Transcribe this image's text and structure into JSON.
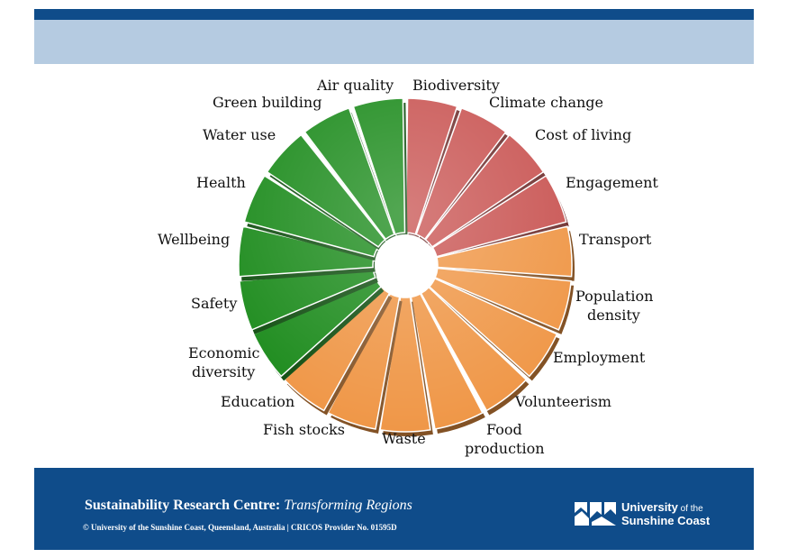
{
  "segments": [
    {
      "label": "Biodiversity",
      "color": "#c85250"
    },
    {
      "label": "Climate change",
      "color": "#c85250"
    },
    {
      "label": "Cost of living",
      "color": "#c85250"
    },
    {
      "label": "Engagement",
      "color": "#c85250"
    },
    {
      "label": "Transport",
      "color": "#ef9544"
    },
    {
      "label": "Population density",
      "color": "#ef9544"
    },
    {
      "label": "Employment",
      "color": "#ef9544"
    },
    {
      "label": "Volunteerism",
      "color": "#ef9544"
    },
    {
      "label": "Food production",
      "color": "#ef9544"
    },
    {
      "label": "Waste",
      "color": "#ef9544"
    },
    {
      "label": "Fish stocks",
      "color": "#ef9544"
    },
    {
      "label": "Education",
      "color": "#ef9544"
    },
    {
      "label": "Economic diversity",
      "color": "#1a8a1a"
    },
    {
      "label": "Safety",
      "color": "#1a8a1a"
    },
    {
      "label": "Wellbeing",
      "color": "#1a8a1a"
    },
    {
      "label": "Health",
      "color": "#1a8a1a"
    },
    {
      "label": "Water use",
      "color": "#1a8a1a"
    },
    {
      "label": "Green building",
      "color": "#1a8a1a"
    },
    {
      "label": "Air quality",
      "color": "#1a8a1a"
    }
  ],
  "labels": {
    "biodiversity": "Biodiversity",
    "climate_change": "Climate change",
    "cost_of_living": "Cost of living",
    "engagement": "Engagement",
    "transport": "Transport",
    "population_density_1": "Population",
    "population_density_2": "density",
    "employment": "Employment",
    "volunteerism": "Volunteerism",
    "food_production_1": "Food",
    "food_production_2": "production",
    "waste": "Waste",
    "fish_stocks": "Fish stocks",
    "education": "Education",
    "economic_diversity_1": "Economic",
    "economic_diversity_2": "diversity",
    "safety": "Safety",
    "wellbeing": "Wellbeing",
    "health": "Health",
    "water_use": "Water use",
    "green_building": "Green building",
    "air_quality": "Air quality"
  },
  "footer": {
    "title_main": "Sustainability Research Centre: ",
    "title_italic": "Transforming Regions",
    "copyright": "© University of the Sunshine Coast, Queensland, Australia | CRICOS Provider No. 01595D",
    "logo_line1": "University",
    "logo_line1_small": " of the",
    "logo_line2": "Sunshine Coast"
  },
  "colors": {
    "top_bar": "#0f4c8a",
    "header_band": "#b5cbe1",
    "red": "#c85250",
    "orange": "#ef9544",
    "green": "#1a8a1a"
  }
}
